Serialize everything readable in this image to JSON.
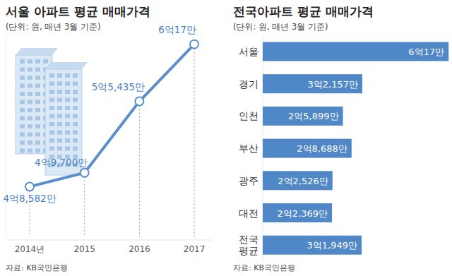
{
  "chart_data": [
    {
      "type": "line",
      "title": "서울 아파트 평균 매매가격",
      "subtitle": "(단위: 원, 매년 3월 기준)",
      "source": "자료: KB국민은행",
      "categories": [
        "2014년",
        "2015",
        "2016",
        "2017"
      ],
      "values": [
        48582,
        49700,
        55435,
        60017
      ],
      "value_labels": [
        "4억8,582만",
        "4억9,700만",
        "5억5,435만",
        "6억17만"
      ],
      "ylim": [
        44300,
        61300
      ],
      "tick_labels": "x",
      "grid": true,
      "data_labels": true,
      "color": "#5b8fcb",
      "marker": "circle",
      "line_style": "solid"
    },
    {
      "type": "bar",
      "orientation": "horizontal",
      "title": "전국아파트 평균 매매가격",
      "subtitle": "(단위: 원, 매년 3월 기준)",
      "source": "자료: KB국민은행",
      "categories": [
        "서울",
        "경기",
        "인천",
        "부산",
        "광주",
        "대전",
        "전국 평균"
      ],
      "values": [
        60017,
        32157,
        25899,
        28688,
        22526,
        22369,
        31949
      ],
      "value_labels": [
        "6억17만",
        "3억2,157만",
        "2억5,899만",
        "2억8,688만",
        "2억2,526만",
        "2억2,369만",
        "3억1,949만"
      ],
      "xlim": [
        0,
        60200
      ],
      "tick_labels": "y",
      "data_labels": true,
      "color": "#4f87c7"
    }
  ]
}
